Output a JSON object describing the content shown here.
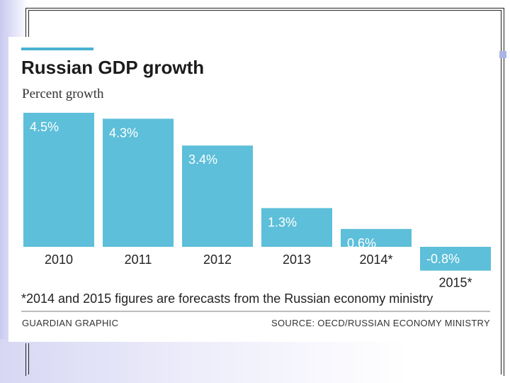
{
  "chart_data": {
    "type": "bar",
    "title": "Russian GDP growth",
    "ylabel": "Percent growth",
    "xlabel": "",
    "categories": [
      "2010",
      "2011",
      "2012",
      "2013",
      "2014*",
      "2015*"
    ],
    "values": [
      4.5,
      4.3,
      3.4,
      1.3,
      0.6,
      -0.8
    ],
    "value_labels": [
      "4.5%",
      "4.3%",
      "3.4%",
      "1.3%",
      "0.6%",
      "-0.8%"
    ],
    "ylim": [
      -0.8,
      4.5
    ],
    "grid": false,
    "bar_color": "#5dbfd9",
    "footnote": "*2014 and 2015 figures are forecasts from the Russian economy ministry",
    "credit": "GUARDIAN GRAPHIC",
    "source": "SOURCE: OECD/RUSSIAN ECONOMY MINISTRY"
  },
  "colors": {
    "accent": "#49b2d1",
    "bar": "#5dbfd9",
    "label_text": "#ffffff"
  }
}
